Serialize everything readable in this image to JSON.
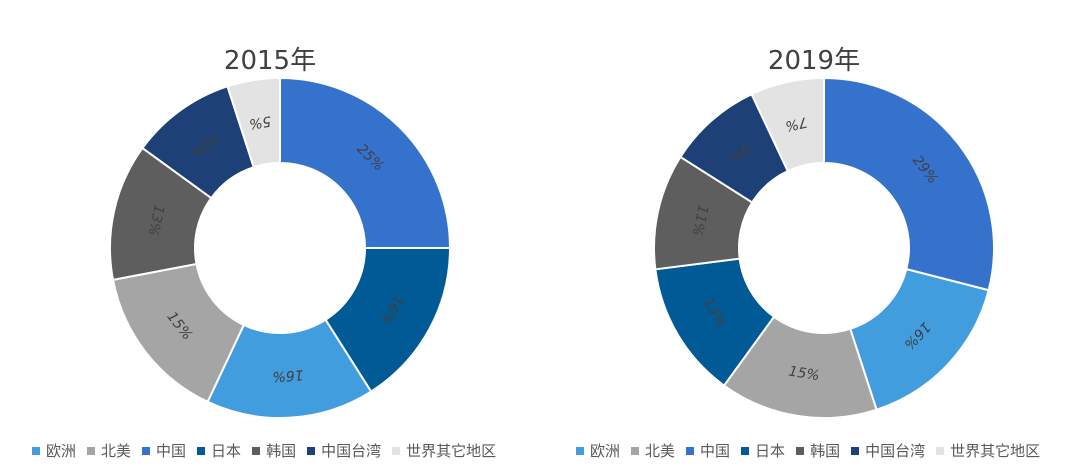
{
  "chart_data": [
    {
      "type": "pie",
      "title": "2015年",
      "categories": [
        "中国",
        "日本",
        "欧洲",
        "北美",
        "韩国",
        "中国台湾",
        "世界其它地区"
      ],
      "values": [
        25,
        16,
        16,
        15,
        13,
        10,
        5
      ],
      "data_labels": [
        "25%",
        "16%",
        "16%",
        "15%",
        "13%",
        "10%",
        "5%"
      ],
      "colors": [
        "#3572CC",
        "#005A96",
        "#429DDE",
        "#A5A5A5",
        "#5E5E5E",
        "#1D4177",
        "#E3E3E3"
      ],
      "donut": true,
      "legend": "bottom"
    },
    {
      "type": "pie",
      "title": "2019年",
      "categories": [
        "中国",
        "欧洲",
        "北美",
        "日本",
        "韩国",
        "中国台湾",
        "世界其它地区"
      ],
      "values": [
        29,
        16,
        15,
        13,
        11,
        9,
        7
      ],
      "data_labels": [
        "29%",
        "16%",
        "15%",
        "13%",
        "11%",
        "9%",
        "7%"
      ],
      "colors": [
        "#3572CC",
        "#429DDE",
        "#A5A5A5",
        "#005A96",
        "#5E5E5E",
        "#1D4177",
        "#E3E3E3"
      ],
      "donut": true,
      "legend": "bottom"
    }
  ],
  "legend": {
    "items": [
      {
        "label": "欧洲",
        "color": "#429DDE"
      },
      {
        "label": "北美",
        "color": "#A5A5A5"
      },
      {
        "label": "中国",
        "color": "#3572CC"
      },
      {
        "label": "日本",
        "color": "#005A96"
      },
      {
        "label": "韩国",
        "color": "#5E5E5E"
      },
      {
        "label": "中国台湾",
        "color": "#1D4177"
      },
      {
        "label": "世界其它地区",
        "color": "#E3E3E3"
      }
    ]
  }
}
